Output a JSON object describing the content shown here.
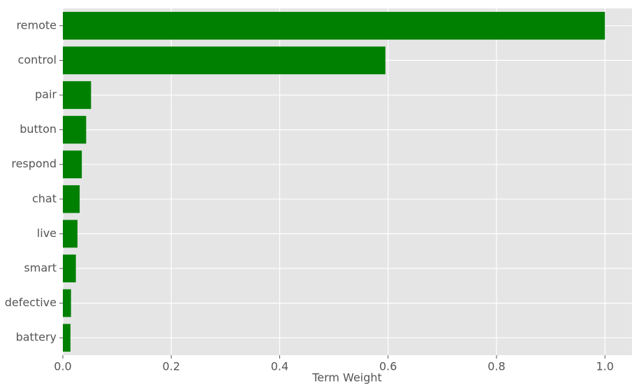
{
  "chart_data": {
    "type": "barh",
    "x_label": "Term Weight",
    "categories": [
      "remote",
      "control",
      "pair",
      "button",
      "respond",
      "chat",
      "live",
      "smart",
      "defective",
      "battery"
    ],
    "values": [
      1.0,
      0.595,
      0.052,
      0.043,
      0.035,
      0.031,
      0.027,
      0.024,
      0.015,
      0.014
    ],
    "color": "#008000",
    "xlim": [
      0,
      1.05
    ],
    "xticks": [
      {
        "value": 0,
        "label": "0.0"
      },
      0.2,
      0.4,
      0.6,
      0.8,
      {
        "value": 1,
        "label": "1.0"
      }
    ],
    "grid": true
  }
}
